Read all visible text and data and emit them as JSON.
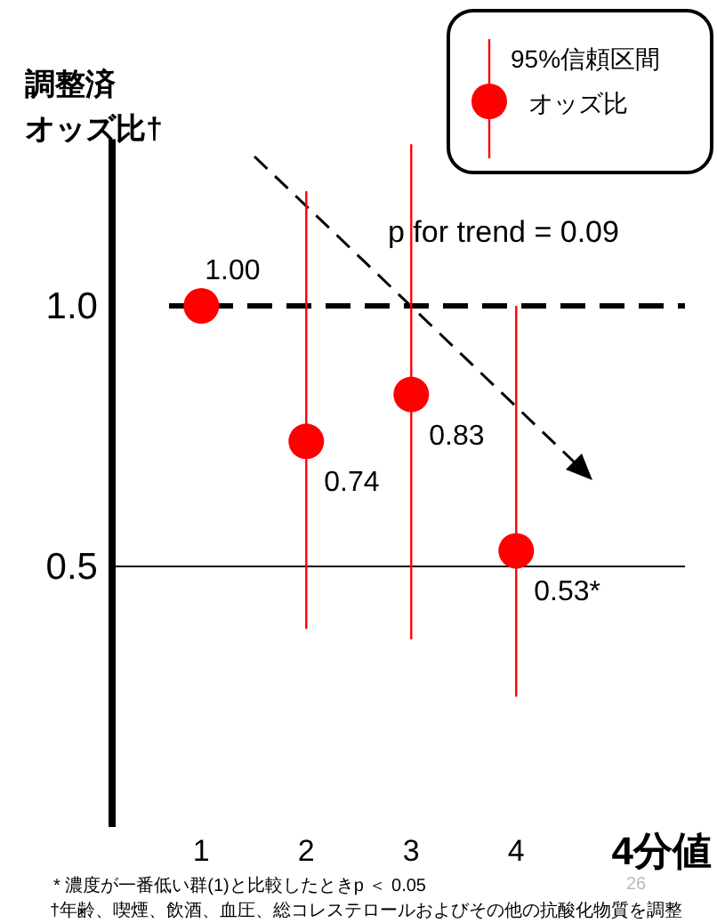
{
  "chart_data": {
    "type": "scatter",
    "ylabel": "調整済オッズ比†",
    "xlabel": "4分値",
    "legend_title": "95%信頼区間",
    "categories": [
      "1",
      "2",
      "3",
      "4"
    ],
    "series": [
      {
        "name": "オッズ比",
        "color": "#ff0000",
        "values": [
          1.0,
          0.74,
          0.83,
          0.53
        ],
        "errors": [
          null,
          [
            0.38,
            1.22
          ],
          [
            0.36,
            1.31
          ],
          [
            0.25,
            1.0
          ]
        ],
        "value_labels": [
          "1.00",
          "0.74",
          "0.83",
          "0.53*"
        ]
      }
    ],
    "ylim": [
      0,
      1.32
    ],
    "yticks": [
      0.5,
      {
        "value": 1.0,
        "label": "1.0"
      }
    ],
    "marker": "circle",
    "legend": "top right",
    "ref_lines": [
      {
        "axis": "y",
        "value": 1.0,
        "line_style": "dashed",
        "color": "#000000"
      },
      {
        "axis": "y",
        "value": 0.5,
        "line_style": "solid",
        "color": "#000000"
      }
    ],
    "annotations": [
      "p for trend = 0.09",
      "* 濃度が一番低い群(1)と比較したときp ＜ 0.05",
      "†年齢、喫煙、飲酒、血圧、総コレステロールおよびその他の抗酸化物質を調整",
      "26"
    ]
  }
}
